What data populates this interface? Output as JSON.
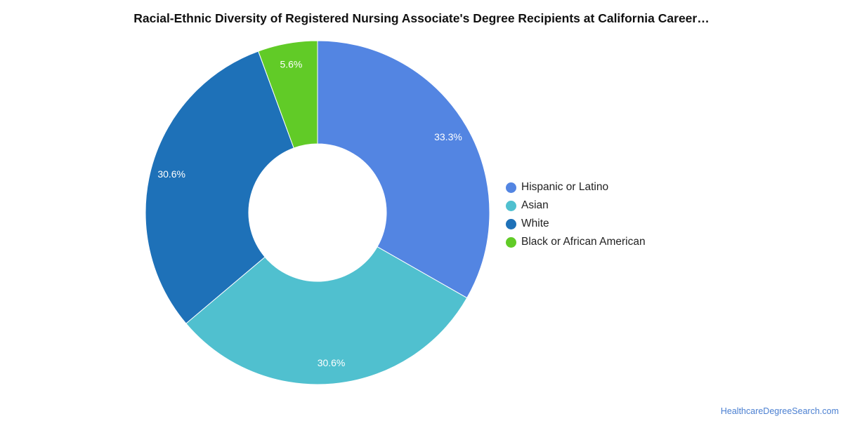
{
  "chart_data": {
    "type": "pie",
    "variant": "donut",
    "title": "Racial-Ethnic Diversity of Registered Nursing Associate's Degree Recipients at California Career…",
    "categories": [
      "Hispanic or Latino",
      "Asian",
      "White",
      "Black or African American"
    ],
    "values": [
      33.3,
      30.6,
      30.6,
      5.6
    ],
    "value_labels": [
      "33.3%",
      "30.6%",
      "30.6%",
      "5.6%"
    ],
    "colors": [
      "#5385e2",
      "#50c0cf",
      "#1e71b8",
      "#61cb27"
    ],
    "legend_position": "right",
    "start_angle": "top",
    "direction": "clockwise"
  },
  "watermark": "HealthcareDegreeSearch.com"
}
